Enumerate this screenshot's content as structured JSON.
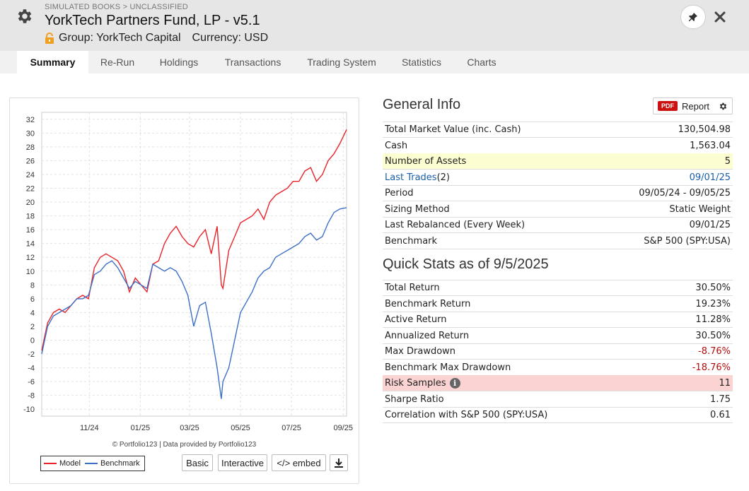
{
  "header": {
    "breadcrumb": "SIMULATED BOOKS > UNCLASSIFIED",
    "title": "YorkTech Partners Fund, LP - v5.1",
    "group": "Group: YorkTech Capital",
    "currency": "Currency: USD"
  },
  "tabs": [
    {
      "label": "Summary",
      "active": true
    },
    {
      "label": "Re-Run"
    },
    {
      "label": "Holdings"
    },
    {
      "label": "Transactions"
    },
    {
      "label": "Trading System"
    },
    {
      "label": "Statistics"
    },
    {
      "label": "Charts"
    }
  ],
  "chart": {
    "credit": "© Portfolio123 | Data provided by Portfolio123",
    "legend": {
      "model": "Model",
      "benchmark": "Benchmark"
    },
    "buttons": {
      "basic": "Basic",
      "interactive": "Interactive",
      "embed": "</> embed"
    }
  },
  "chart_data": {
    "type": "line",
    "title": "",
    "xlabel": "",
    "ylabel": "",
    "x_ticks": [
      "11/24",
      "01/25",
      "03/25",
      "05/25",
      "07/25",
      "09/25"
    ],
    "y_ticks": [
      -10,
      -8,
      -6,
      -4,
      -2,
      0,
      2,
      4,
      6,
      8,
      10,
      12,
      14,
      16,
      18,
      20,
      22,
      24,
      26,
      28,
      30,
      32
    ],
    "ylim": [
      -11,
      33
    ],
    "grid": true,
    "legend_position": "bottom-left",
    "colors": {
      "model": "#e8232a",
      "benchmark": "#3c6fc8"
    },
    "x": [
      "09/05/24",
      "09/12/24",
      "09/19/24",
      "09/26/24",
      "10/03/24",
      "10/10/24",
      "10/17/24",
      "10/24/24",
      "10/31/24",
      "11/07/24",
      "11/14/24",
      "11/21/24",
      "11/28/24",
      "12/05/24",
      "12/12/24",
      "12/19/24",
      "12/26/24",
      "01/02/25",
      "01/09/25",
      "01/16/25",
      "01/23/25",
      "01/30/25",
      "02/06/25",
      "02/13/25",
      "02/20/25",
      "02/27/25",
      "03/06/25",
      "03/13/25",
      "03/20/25",
      "03/27/25",
      "04/03/25",
      "04/08/25",
      "04/10/25",
      "04/17/25",
      "04/24/25",
      "05/01/25",
      "05/08/25",
      "05/15/25",
      "05/22/25",
      "05/29/25",
      "06/05/25",
      "06/12/25",
      "06/19/25",
      "06/26/25",
      "07/03/25",
      "07/10/25",
      "07/17/25",
      "07/24/25",
      "07/31/25",
      "08/07/25",
      "08/14/25",
      "08/21/25",
      "08/28/25",
      "09/05/25"
    ],
    "series": [
      {
        "name": "Model",
        "values": [
          -1.5,
          2.5,
          4.0,
          4.5,
          4.0,
          5.0,
          6.0,
          6.5,
          6.0,
          10.5,
          12.0,
          12.5,
          12.0,
          11.5,
          10.0,
          7.0,
          9.0,
          8.0,
          7.0,
          11.0,
          11.5,
          14.0,
          15.5,
          16.5,
          15.0,
          14.0,
          13.5,
          15.0,
          16.0,
          12.5,
          16.5,
          8.0,
          7.5,
          13.0,
          15.0,
          17.0,
          17.5,
          18.0,
          19.0,
          17.5,
          20.0,
          21.0,
          21.5,
          22.0,
          23.0,
          23.0,
          24.5,
          25.0,
          23.0,
          24.0,
          26.0,
          27.0,
          28.5,
          30.5
        ]
      },
      {
        "name": "Benchmark",
        "values": [
          -2.0,
          2.0,
          3.5,
          4.0,
          4.5,
          5.0,
          6.0,
          6.0,
          6.5,
          9.5,
          10.0,
          11.0,
          11.5,
          10.5,
          9.0,
          7.5,
          8.5,
          8.0,
          7.5,
          11.0,
          10.5,
          10.0,
          10.5,
          10.0,
          8.5,
          6.5,
          2.0,
          5.0,
          5.5,
          1.0,
          -4.0,
          -8.5,
          -6.0,
          -4.0,
          0.0,
          4.0,
          5.5,
          7.0,
          9.0,
          10.0,
          10.5,
          12.0,
          12.5,
          13.0,
          13.5,
          14.0,
          15.0,
          15.5,
          14.5,
          15.0,
          17.0,
          18.5,
          19.0,
          19.2
        ]
      }
    ]
  },
  "general_info": {
    "title": "General Info",
    "report_badge": "PDF",
    "report_label": "Report",
    "rows": [
      {
        "label": "Total Market Value (inc. Cash)",
        "value": "130,504.98"
      },
      {
        "label": "Cash",
        "value": "1,563.04"
      },
      {
        "label": "Number of Assets",
        "value": "5"
      },
      {
        "label": "Last Trades",
        "label_suffix": " (2)",
        "value": "09/01/25"
      },
      {
        "label": "Period",
        "value": "09/05/24 - 09/05/25"
      },
      {
        "label": "Sizing Method",
        "value": "Static Weight"
      },
      {
        "label": "Last Rebalanced (Every Week)",
        "value": "09/01/25"
      },
      {
        "label": "Benchmark",
        "value": "S&P 500 (SPY:USA)"
      }
    ]
  },
  "quick_stats": {
    "title": "Quick Stats as of 9/5/2025",
    "rows": [
      {
        "label": "Total Return",
        "value": "30.50%"
      },
      {
        "label": "Benchmark Return",
        "value": "19.23%"
      },
      {
        "label": "Active Return",
        "value": "11.28%"
      },
      {
        "label": "Annualized Return",
        "value": "30.50%"
      },
      {
        "label": "Max Drawdown",
        "value": "-8.76%"
      },
      {
        "label": "Benchmark Max Drawdown",
        "value": "-18.76%"
      },
      {
        "label": "Risk Samples",
        "value": "11"
      },
      {
        "label": "Sharpe Ratio",
        "value": "1.75"
      },
      {
        "label": "Correlation with S&P 500 (SPY:USA)",
        "value": "0.61"
      }
    ]
  }
}
